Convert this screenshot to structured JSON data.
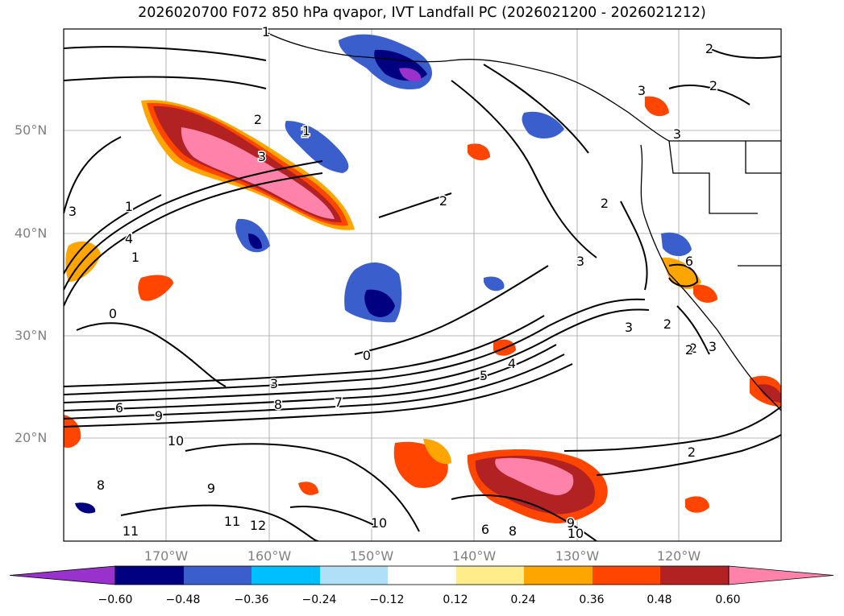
{
  "title": "2026020700 F072 850 hPa qvapor, IVT Landfall PC (2026021200 - 2026021212)",
  "lat_labels": [
    "50°N",
    "40°N",
    "30°N",
    "20°N"
  ],
  "lon_labels": [
    "170°W",
    "160°W",
    "150°W",
    "140°W",
    "130°W",
    "120°W"
  ],
  "colorbar": {
    "colors": [
      "#9932cc",
      "#000080",
      "#3a5fcd",
      "#00bfff",
      "#b0e0f8",
      "#ffffff",
      "#ffec8b",
      "#ffa500",
      "#ff4500",
      "#b22222",
      "#ff82ab"
    ],
    "labels": [
      "−0.60",
      "−0.48",
      "−0.36",
      "−0.24",
      "−0.12",
      "0.12",
      "0.24",
      "0.36",
      "0.48",
      "0.60"
    ]
  },
  "contour_labels": [
    "1",
    "2",
    "2",
    "3",
    "3",
    "2",
    "3",
    "1",
    "3",
    "1",
    "4",
    "1",
    "0",
    "2",
    "2",
    "3",
    "3",
    "2",
    "6",
    "0",
    "3",
    "5",
    "4",
    "7",
    "8",
    "6",
    "9",
    "10",
    "2",
    "2",
    "8",
    "9",
    "11",
    "12",
    "10",
    "11",
    "6",
    "8",
    "9",
    "10",
    "1",
    "3",
    "2"
  ]
}
